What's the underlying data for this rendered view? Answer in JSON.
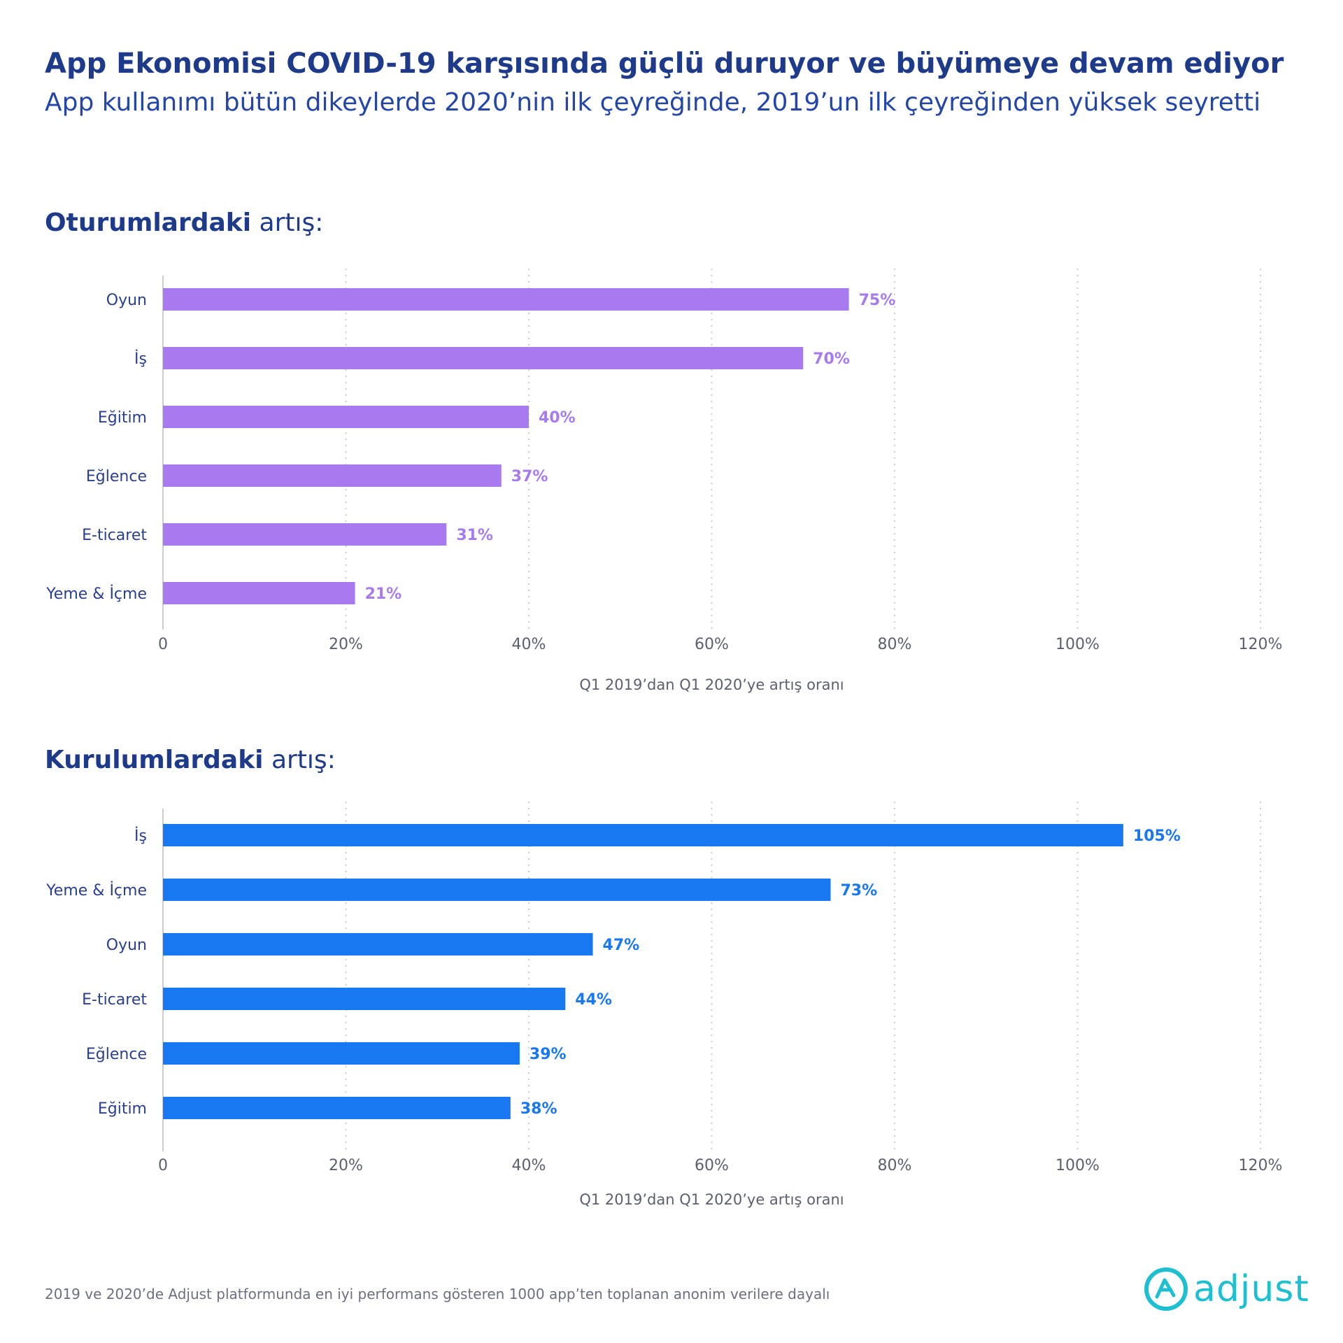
{
  "header": {
    "title": "App Ekonomisi COVID-19 karşısında güçlü duruyor ve büyümeye devam ediyor",
    "subtitle": "App kullanımı bütün dikeylerde 2020’nin ilk çeyreğinde, 2019’un ilk çeyreğinden yüksek seyretti"
  },
  "sections": {
    "sessions": {
      "heading_bold": "Oturumlardaki",
      "heading_light": "artış:"
    },
    "installs": {
      "heading_bold": "Kurulumlardaki",
      "heading_light": "artış:"
    }
  },
  "footnote": "2019 ve 2020’de Adjust platformunda en iyi performans gösteren 1000 app’ten toplanan anonim verilere dayalı",
  "logo": {
    "text": "adjust",
    "color": "#1dbfd0",
    "icon": "adjust-logo-icon"
  },
  "chart_data": [
    {
      "type": "bar",
      "orientation": "horizontal",
      "categories": [
        "Oyun",
        "İş",
        "Eğitim",
        "Eğlence",
        "E-ticaret",
        "Yeme & İçme"
      ],
      "values": [
        75,
        70,
        40,
        37,
        31,
        21
      ],
      "data_labels": [
        "75%",
        "70%",
        "40%",
        "37%",
        "31%",
        "21%"
      ],
      "xlim": [
        0,
        120
      ],
      "xticks": [
        0,
        20,
        40,
        60,
        80,
        100,
        120
      ],
      "xtick_labels": [
        "0",
        "20%",
        "40%",
        "60%",
        "80%",
        "100%",
        "120%"
      ],
      "xlabel": "Q1 2019’dan Q1 2020’ye artış oranı",
      "ylabel": "",
      "grid": "vertical dotted",
      "color": "#a77bef"
    },
    {
      "type": "bar",
      "orientation": "horizontal",
      "categories": [
        "İş",
        "Yeme & İçme",
        "Oyun",
        "E-ticaret",
        "Eğlence",
        "Eğitim"
      ],
      "values": [
        105,
        73,
        47,
        44,
        39,
        38
      ],
      "data_labels": [
        "105%",
        "73%",
        "47%",
        "44%",
        "39%",
        "38%"
      ],
      "xlim": [
        0,
        120
      ],
      "xticks": [
        0,
        20,
        40,
        60,
        80,
        100,
        120
      ],
      "xtick_labels": [
        "0",
        "20%",
        "40%",
        "60%",
        "80%",
        "100%",
        "120%"
      ],
      "xlabel": "Q1 2019’dan Q1 2020’ye artış oranı",
      "ylabel": "",
      "grid": "vertical dotted",
      "color": "#1778f2"
    }
  ]
}
